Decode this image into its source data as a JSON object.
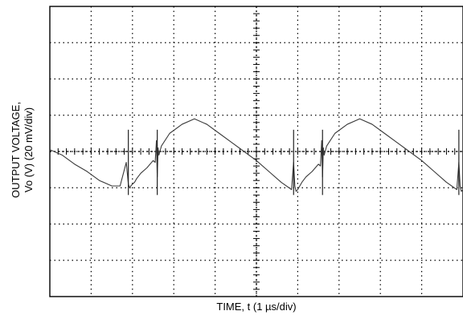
{
  "chart_data": {
    "type": "line",
    "title": "",
    "xlabel": "TIME, t (1 µs/div)",
    "ylabel_line1": "OUTPUT VOLTAGE,",
    "ylabel_line2": "Vo (V) (20 mV/div)",
    "x_divisions": 10,
    "y_divisions": 8,
    "x_unit_per_div": "1 µs",
    "y_unit_per_div": "20 mV",
    "xlim": [
      0,
      10
    ],
    "ylim": [
      -4,
      4
    ],
    "grid": true,
    "grid_style": "dotted",
    "series": [
      {
        "color": "#3a3a3a",
        "x": [
          0.0,
          0.3,
          0.6,
          0.9,
          1.2,
          1.5,
          1.7,
          1.85,
          1.9,
          1.93,
          1.96,
          2.0,
          2.05,
          2.1,
          2.2,
          2.35,
          2.5,
          2.55,
          2.58,
          2.6,
          2.62,
          2.64,
          2.7,
          2.9,
          3.2,
          3.5,
          3.8,
          4.1,
          4.4,
          4.7,
          5.0,
          5.3,
          5.6,
          5.85,
          5.9,
          5.93,
          5.96,
          6.0,
          6.05,
          6.1,
          6.2,
          6.35,
          6.5,
          6.55,
          6.58,
          6.6,
          6.62,
          6.64,
          6.7,
          6.9,
          7.2,
          7.5,
          7.8,
          8.1,
          8.4,
          8.7,
          9.0,
          9.3,
          9.6,
          9.85,
          9.9,
          9.93,
          9.96,
          10.0
        ],
        "y": [
          0.05,
          -0.1,
          -0.35,
          -0.55,
          -0.8,
          -0.95,
          -0.95,
          -0.3,
          -0.9,
          -1.0,
          -0.95,
          -0.9,
          -0.85,
          -0.75,
          -0.6,
          -0.45,
          -0.25,
          -0.3,
          0.3,
          -0.7,
          0.1,
          -0.1,
          0.15,
          0.5,
          0.75,
          0.9,
          0.75,
          0.5,
          0.25,
          0.0,
          -0.25,
          -0.55,
          -0.85,
          -1.05,
          -0.3,
          -0.95,
          -1.1,
          -1.05,
          -0.95,
          -0.85,
          -0.7,
          -0.55,
          -0.35,
          -0.4,
          0.3,
          -0.7,
          0.1,
          -0.1,
          0.15,
          0.5,
          0.75,
          0.9,
          0.75,
          0.5,
          0.25,
          0.0,
          -0.25,
          -0.55,
          -0.85,
          -1.05,
          -0.3,
          -0.95,
          -1.1,
          -1.05
        ]
      }
    ],
    "spike_x": [
      1.9,
      2.6,
      5.9,
      6.6,
      9.9
    ]
  }
}
